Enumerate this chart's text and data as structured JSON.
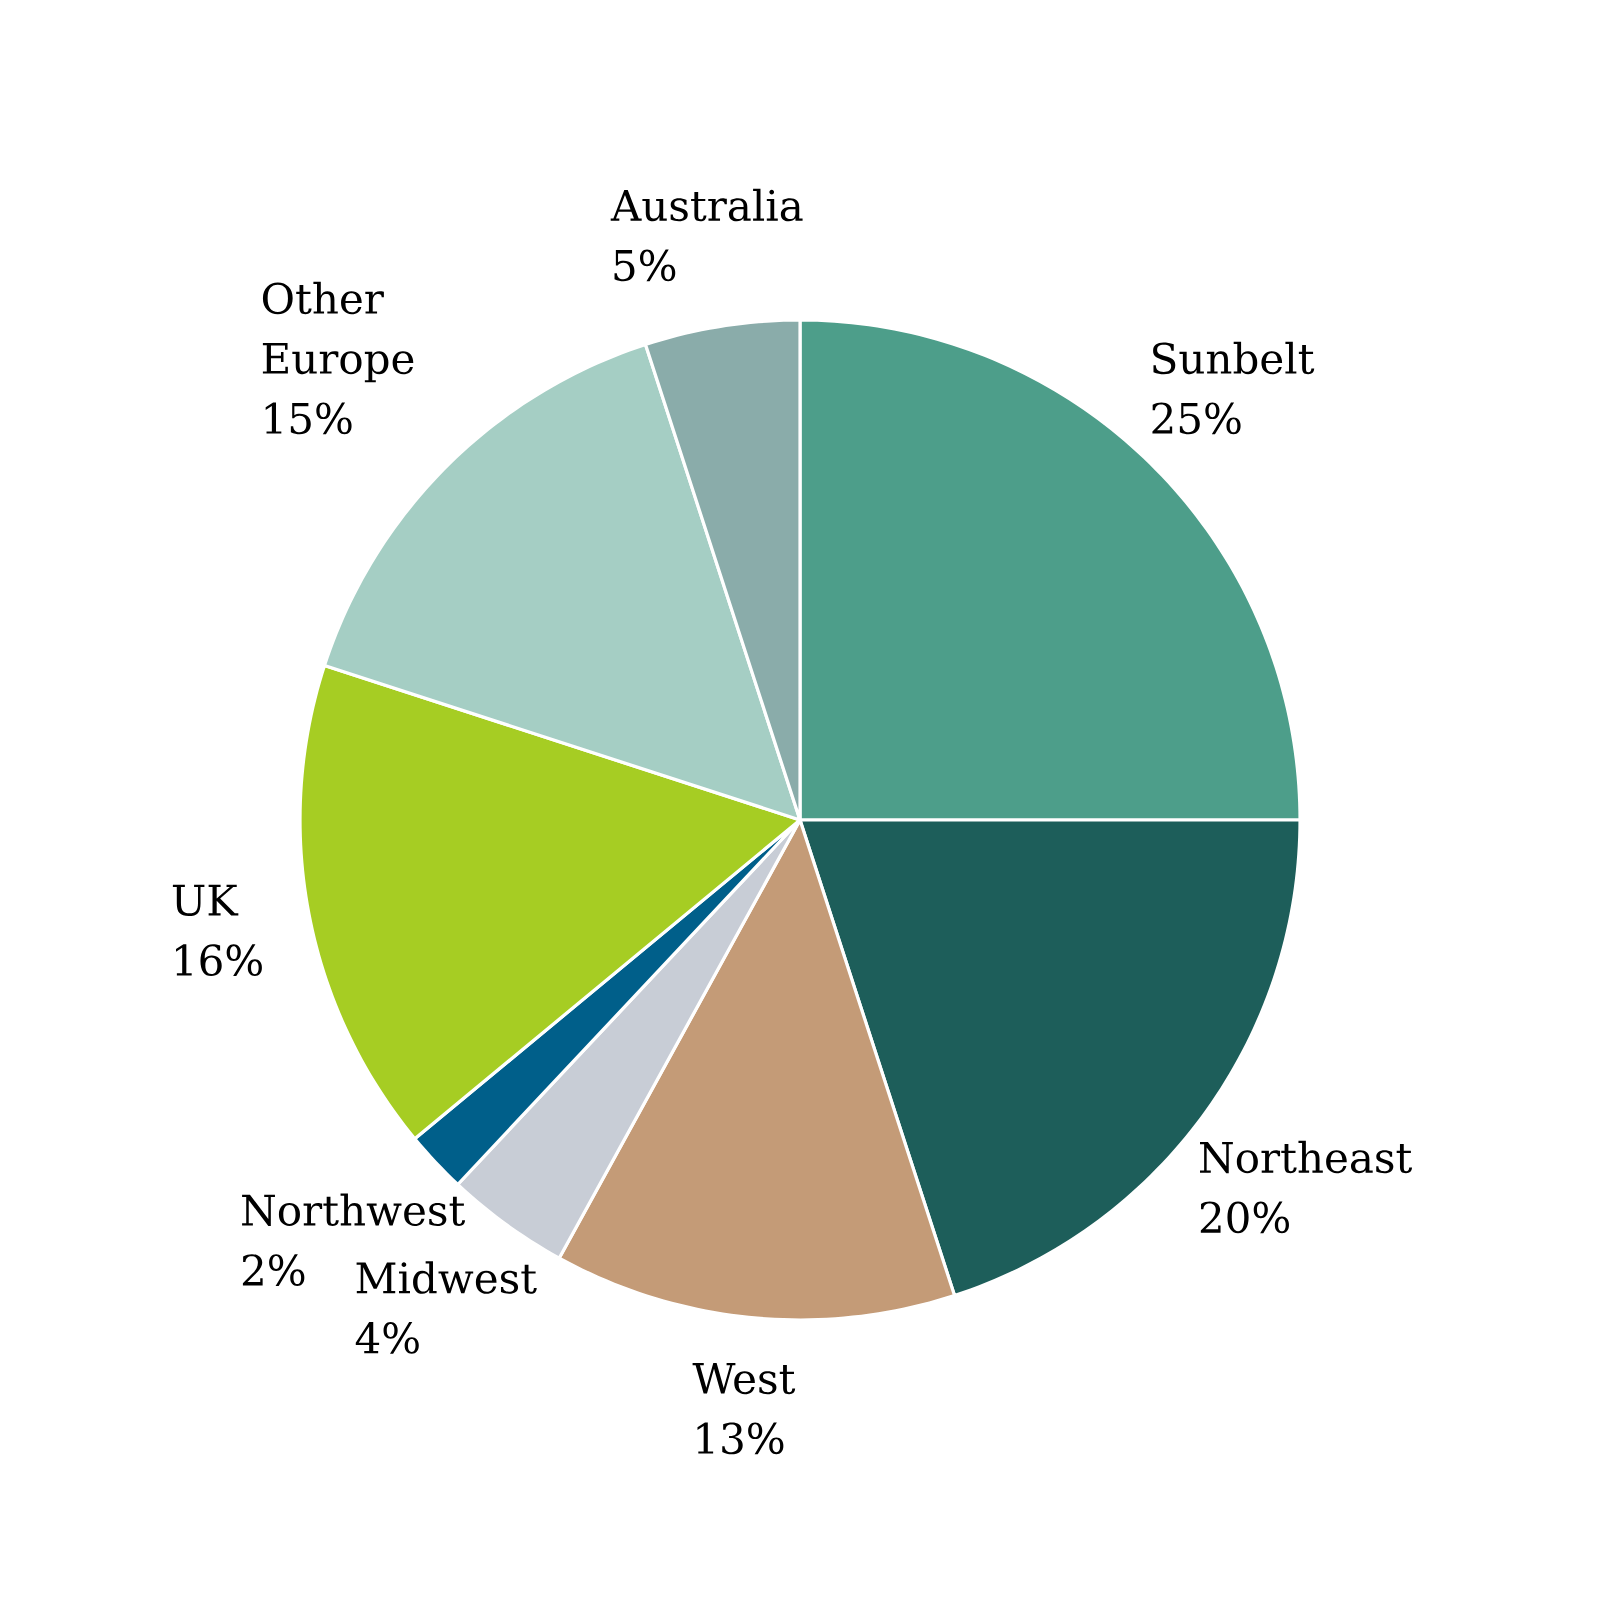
{
  "chart_data": {
    "type": "pie",
    "categories": [
      "Sunbelt",
      "Northeast",
      "West",
      "Midwest",
      "Northwest",
      "UK",
      "Other Europe",
      "Australia"
    ],
    "values": [
      25,
      20,
      13,
      4,
      2,
      16,
      15,
      5
    ],
    "colors": [
      "#4d9e8a",
      "#1d5e5a",
      "#c49b77",
      "#c8cdd6",
      "#005f8a",
      "#a6cd23",
      "#a5cec4",
      "#8aacaa"
    ],
    "value_labels": [
      "25%",
      "20%",
      "13%",
      "4%",
      "2%",
      "16%",
      "15%",
      "5%"
    ]
  }
}
